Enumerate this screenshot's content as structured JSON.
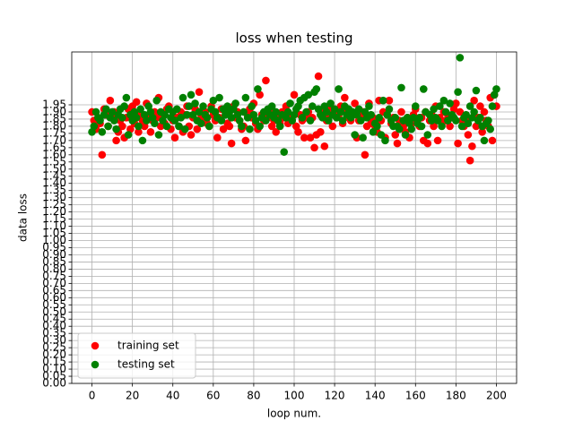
{
  "chart_data": {
    "type": "scatter",
    "title": "loss when testing",
    "x_label": "loop num.",
    "y_label": "data loss",
    "x": [
      0,
      1,
      2,
      3,
      4,
      5,
      6,
      7,
      8,
      9,
      10,
      11,
      12,
      13,
      14,
      15,
      16,
      17,
      18,
      19,
      20,
      21,
      22,
      23,
      24,
      25,
      26,
      27,
      28,
      29,
      30,
      31,
      32,
      33,
      34,
      35,
      36,
      37,
      38,
      39,
      40,
      41,
      42,
      43,
      44,
      45,
      46,
      47,
      48,
      49,
      50,
      51,
      52,
      53,
      54,
      55,
      56,
      57,
      58,
      59,
      60,
      61,
      62,
      63,
      64,
      65,
      66,
      67,
      68,
      69,
      70,
      71,
      72,
      73,
      74,
      75,
      76,
      77,
      78,
      79,
      80,
      81,
      82,
      83,
      84,
      85,
      86,
      87,
      88,
      89,
      90,
      91,
      92,
      93,
      94,
      95,
      96,
      97,
      98,
      99,
      100,
      101,
      102,
      103,
      104,
      105,
      106,
      107,
      108,
      109,
      110,
      111,
      112,
      113,
      114,
      115,
      116,
      117,
      118,
      119,
      120,
      121,
      122,
      123,
      124,
      125,
      126,
      127,
      128,
      129,
      130,
      131,
      132,
      133,
      134,
      135,
      136,
      137,
      138,
      139,
      140,
      141,
      142,
      143,
      144,
      145,
      146,
      147,
      148,
      149,
      150,
      151,
      152,
      153,
      154,
      155,
      156,
      157,
      158,
      159,
      160,
      161,
      162,
      163,
      164,
      165,
      166,
      167,
      168,
      169,
      170,
      171,
      172,
      173,
      174,
      175,
      176,
      177,
      178,
      179,
      180,
      181,
      182,
      183,
      184,
      185,
      186,
      187,
      188,
      189,
      190,
      191,
      192,
      193,
      194,
      195,
      196,
      197,
      198,
      199,
      200
    ],
    "series": [
      {
        "name": "training set",
        "color": "#ff0000",
        "values": [
          1.9,
          1.84,
          1.78,
          1.86,
          1.82,
          1.6,
          1.92,
          1.88,
          1.8,
          1.98,
          1.88,
          1.9,
          1.7,
          1.76,
          1.84,
          1.8,
          1.72,
          1.86,
          1.92,
          1.78,
          1.94,
          1.82,
          1.97,
          1.76,
          1.88,
          1.84,
          1.8,
          1.96,
          1.86,
          1.76,
          1.84,
          1.9,
          1.86,
          2.0,
          1.8,
          1.88,
          1.82,
          1.92,
          1.94,
          1.78,
          1.84,
          1.72,
          1.86,
          1.8,
          1.9,
          1.76,
          1.88,
          1.94,
          1.8,
          1.74,
          1.86,
          1.92,
          1.78,
          2.04,
          1.88,
          1.84,
          1.9,
          1.82,
          1.8,
          1.94,
          1.88,
          1.84,
          1.72,
          1.86,
          1.92,
          1.78,
          1.9,
          1.82,
          1.8,
          1.68,
          1.94,
          1.86,
          1.9,
          1.84,
          1.78,
          1.8,
          1.7,
          1.88,
          1.92,
          1.86,
          1.96,
          1.82,
          1.78,
          2.02,
          1.88,
          1.84,
          2.12,
          1.86,
          1.9,
          1.8,
          1.84,
          1.76,
          1.88,
          1.82,
          1.9,
          1.86,
          1.94,
          1.82,
          1.88,
          1.84,
          2.02,
          1.8,
          1.76,
          1.88,
          1.84,
          1.72,
          1.86,
          1.9,
          1.72,
          1.86,
          1.65,
          1.74,
          2.15,
          1.76,
          1.9,
          1.66,
          1.84,
          1.88,
          1.92,
          1.8,
          1.92,
          1.86,
          1.88,
          1.94,
          1.82,
          2.0,
          1.9,
          1.86,
          1.84,
          1.88,
          1.96,
          1.72,
          1.84,
          1.88,
          1.9,
          1.6,
          1.8,
          1.96,
          1.82,
          1.86,
          1.8,
          1.76,
          1.98,
          1.84,
          1.9,
          1.72,
          1.88,
          1.98,
          1.82,
          1.86,
          1.74,
          1.68,
          1.84,
          1.9,
          1.8,
          1.76,
          1.86,
          1.72,
          1.82,
          1.88,
          1.92,
          1.84,
          1.8,
          1.86,
          1.7,
          1.9,
          1.68,
          1.84,
          1.88,
          1.8,
          1.94,
          1.7,
          1.86,
          1.82,
          1.9,
          1.84,
          1.88,
          1.8,
          1.86,
          1.92,
          1.96,
          1.68,
          1.9,
          1.84,
          1.8,
          1.86,
          1.74,
          1.56,
          1.66,
          1.98,
          1.8,
          1.86,
          1.94,
          1.76,
          1.9,
          1.84,
          1.8,
          2.0,
          1.7,
          2.02,
          1.94
        ]
      },
      {
        "name": "testing set",
        "color": "#008000",
        "values": [
          1.76,
          1.8,
          1.9,
          1.86,
          1.84,
          1.76,
          1.88,
          1.92,
          1.8,
          1.86,
          1.9,
          1.84,
          1.78,
          1.88,
          1.92,
          1.86,
          1.94,
          2.0,
          1.74,
          1.88,
          1.84,
          1.9,
          1.86,
          1.8,
          1.92,
          1.7,
          1.88,
          1.84,
          1.94,
          1.9,
          1.86,
          1.82,
          1.98,
          1.74,
          1.9,
          1.84,
          1.88,
          1.8,
          1.92,
          1.86,
          1.9,
          1.84,
          1.92,
          1.8,
          1.86,
          2.0,
          1.78,
          1.88,
          1.94,
          2.02,
          1.88,
          1.96,
          1.84,
          1.9,
          1.82,
          1.94,
          1.88,
          1.86,
          1.8,
          1.92,
          1.98,
          1.9,
          1.86,
          2.0,
          1.84,
          1.92,
          1.88,
          1.94,
          1.9,
          1.86,
          1.92,
          1.96,
          1.88,
          1.84,
          1.8,
          1.9,
          2.0,
          1.86,
          1.78,
          1.94,
          1.88,
          1.84,
          2.06,
          1.8,
          1.86,
          1.9,
          1.84,
          1.92,
          1.88,
          1.94,
          1.86,
          1.9,
          1.84,
          1.8,
          1.88,
          1.62,
          1.86,
          1.9,
          1.96,
          1.84,
          1.88,
          1.92,
          1.94,
          1.98,
          1.86,
          2.0,
          1.9,
          2.02,
          1.84,
          1.94,
          2.04,
          2.06,
          1.92,
          1.88,
          1.86,
          1.94,
          1.9,
          1.84,
          1.96,
          1.88,
          1.92,
          1.86,
          2.06,
          1.9,
          1.84,
          1.94,
          1.88,
          1.92,
          1.86,
          1.9,
          1.74,
          1.88,
          1.92,
          1.84,
          1.72,
          1.9,
          1.86,
          1.94,
          1.88,
          1.76,
          1.82,
          1.8,
          1.86,
          1.74,
          1.98,
          1.7,
          1.88,
          1.92,
          1.84,
          1.8,
          1.86,
          1.8,
          1.78,
          2.07,
          1.84,
          1.74,
          1.86,
          1.82,
          1.78,
          1.86,
          1.94,
          1.82,
          1.86,
          1.8,
          2.06,
          1.9,
          1.74,
          1.88,
          1.84,
          1.92,
          1.86,
          1.84,
          1.94,
          1.8,
          1.98,
          1.9,
          1.84,
          1.96,
          1.88,
          1.86,
          1.84,
          2.04,
          2.28,
          1.8,
          1.86,
          1.88,
          1.82,
          1.94,
          1.86,
          1.9,
          2.05,
          1.84,
          1.86,
          1.8,
          1.7,
          1.82,
          1.84,
          1.78,
          1.94,
          2.02,
          2.06
        ]
      }
    ],
    "xlim": [
      -10,
      210
    ],
    "xticks": [
      0,
      20,
      40,
      60,
      80,
      100,
      120,
      140,
      160,
      180,
      200
    ],
    "ylim": [
      0,
      2.32
    ],
    "yticks": [
      {
        "value": 0,
        "label": "0.00"
      },
      {
        "value": 0.05,
        "label": "0.05"
      },
      {
        "value": 0.1,
        "label": "0.10"
      },
      {
        "value": 0.15,
        "label": "0.15"
      },
      {
        "value": 0.2,
        "label": "0.20"
      },
      {
        "value": 0.25,
        "label": "0.25"
      },
      {
        "value": 0.3,
        "label": "0.30"
      },
      {
        "value": 0.35,
        "label": "0.35"
      },
      {
        "value": 0.4,
        "label": "0.40"
      },
      {
        "value": 0.45,
        "label": "0.45"
      },
      {
        "value": 0.5,
        "label": "0.50"
      },
      {
        "value": 0.55,
        "label": "0.55"
      },
      {
        "value": 0.6,
        "label": "0.60"
      },
      {
        "value": 0.65,
        "label": "0.65"
      },
      {
        "value": 0.7,
        "label": "0.70"
      },
      {
        "value": 0.75,
        "label": "0.75"
      },
      {
        "value": 0.8,
        "label": "0.80"
      },
      {
        "value": 0.85,
        "label": "0.85"
      },
      {
        "value": 0.9,
        "label": "0.90"
      },
      {
        "value": 0.95,
        "label": "0.95"
      },
      {
        "value": 1,
        "label": "1.00"
      },
      {
        "value": 1.05,
        "label": "1.05"
      },
      {
        "value": 1.1,
        "label": "1.10"
      },
      {
        "value": 1.15,
        "label": "1.15"
      },
      {
        "value": 1.2,
        "label": "1.20"
      },
      {
        "value": 1.25,
        "label": "1.25"
      },
      {
        "value": 1.3,
        "label": "1.30"
      },
      {
        "value": 1.35,
        "label": "1.35"
      },
      {
        "value": 1.4,
        "label": "1.40"
      },
      {
        "value": 1.45,
        "label": "1.45"
      },
      {
        "value": 1.5,
        "label": "1.50"
      },
      {
        "value": 1.55,
        "label": "1.55"
      },
      {
        "value": 1.6,
        "label": "1.60"
      },
      {
        "value": 1.65,
        "label": "1.65"
      },
      {
        "value": 1.7,
        "label": "1.70"
      },
      {
        "value": 1.75,
        "label": "1.75"
      },
      {
        "value": 1.8,
        "label": "1.80"
      },
      {
        "value": 1.85,
        "label": "1.85"
      },
      {
        "value": 1.9,
        "label": "1.90"
      },
      {
        "value": 1.95,
        "label": "1.95"
      }
    ],
    "grid": true,
    "legend": "lower left"
  }
}
